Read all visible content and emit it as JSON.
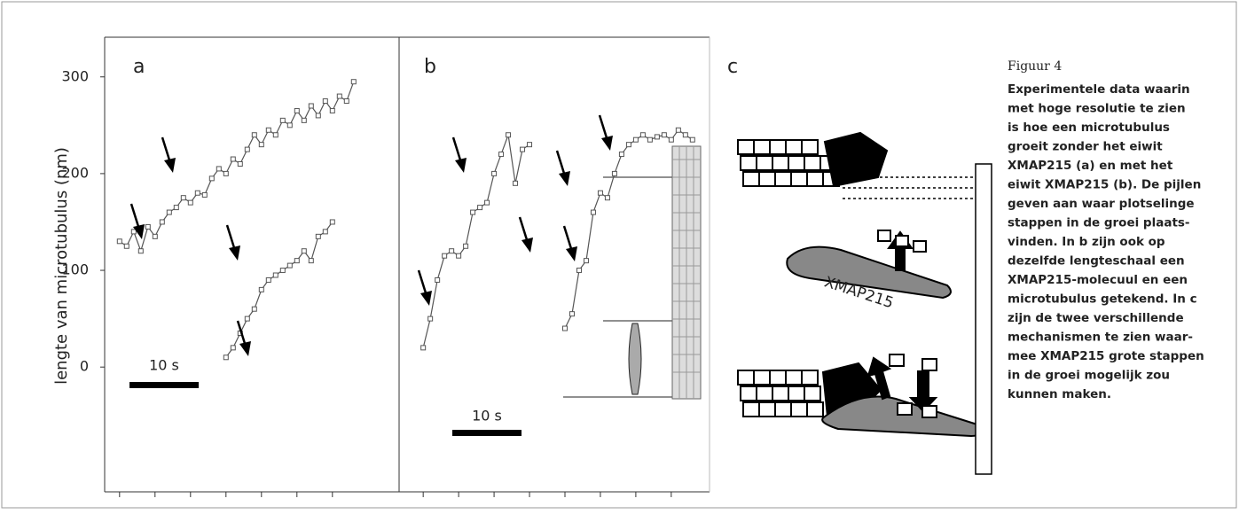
{
  "chart_data": [
    {
      "type": "line",
      "panel_label": "a",
      "y_label": "lengte van microtubulus (nm)",
      "xlim": [
        -2.1,
        39.4
      ],
      "ylim": [
        -129,
        341
      ],
      "yticks": [
        0,
        100,
        200,
        300
      ],
      "xticks": [
        0,
        5,
        10,
        15,
        20,
        25,
        30
      ],
      "scale_bar": "10 s",
      "x": [
        0,
        1,
        2,
        3,
        4,
        5,
        6,
        7,
        8,
        9,
        10,
        11,
        12,
        13,
        14,
        15,
        16,
        17,
        18,
        19,
        20,
        21,
        22,
        23,
        24,
        25,
        26,
        27,
        28,
        29,
        30,
        31,
        32,
        33
      ],
      "series": [
        {
          "color": "#555555",
          "values": [
            130,
            125,
            140,
            120,
            145,
            135,
            150,
            160,
            165,
            175,
            170,
            180,
            178,
            195,
            205,
            200,
            215,
            210,
            225,
            240,
            230,
            245,
            240,
            255,
            250,
            265,
            255,
            270,
            260,
            275,
            265,
            280,
            275,
            295
          ]
        },
        {
          "color": "#555555",
          "values": [
            null,
            null,
            null,
            null,
            null,
            null,
            null,
            null,
            null,
            null,
            null,
            null,
            null,
            null,
            null,
            10,
            20,
            35,
            50,
            60,
            80,
            90,
            95,
            100,
            105,
            110,
            120,
            110,
            135,
            140,
            150,
            null,
            null,
            null
          ]
        }
      ]
    },
    {
      "type": "line",
      "panel_label": "b",
      "xlim": [
        -3.4,
        40.4
      ],
      "ylim": [
        -129,
        341
      ],
      "xticks": [
        0,
        5,
        10,
        15,
        20,
        25,
        30,
        35
      ],
      "scale_bar": "10 s",
      "x": [
        0,
        1,
        2,
        3,
        4,
        5,
        6,
        7,
        8,
        9,
        10,
        11,
        12,
        13,
        14,
        15,
        16,
        17,
        18,
        19,
        20,
        21,
        22,
        23,
        24,
        25,
        26,
        27,
        28,
        29,
        30,
        31,
        32,
        33,
        34,
        35,
        36,
        37,
        38
      ],
      "series": [
        {
          "color": "#555555",
          "values": [
            20,
            50,
            90,
            115,
            120,
            115,
            125,
            160,
            165,
            170,
            200,
            220,
            240,
            190,
            225,
            230,
            null,
            null,
            null,
            null,
            null,
            null,
            null,
            null,
            null,
            null,
            null,
            null,
            null,
            null,
            null,
            null,
            null,
            null,
            null,
            null,
            null,
            null,
            null
          ]
        },
        {
          "color": "#555555",
          "values": [
            null,
            null,
            null,
            null,
            null,
            null,
            null,
            null,
            null,
            null,
            null,
            null,
            null,
            null,
            null,
            null,
            null,
            null,
            null,
            null,
            40,
            55,
            100,
            110,
            160,
            180,
            175,
            200,
            220,
            230,
            235,
            240,
            235,
            238,
            240,
            235,
            245,
            240,
            235
          ]
        }
      ]
    }
  ],
  "diagram": {
    "panel_label": "c",
    "protein_label": "XMAP215"
  },
  "caption": {
    "title": "Figuur 4",
    "lines": [
      "Experimentele data waarin",
      "met hoge resolutie te zien",
      "is hoe een microtubulus",
      "groeit zonder het eiwit",
      "XMAP215 (a) en met het",
      "eiwit XMAP215 (b). De pijlen",
      "geven aan waar plotselinge",
      "stappen in de groei plaats-",
      "vinden. In b zijn ook op",
      "dezelfde lengteschaal een",
      "XMAP215-molecuul en een",
      "microtubulus getekend. In c",
      "zijn de twee verschillende",
      "mechanismen te zien waar-",
      "mee XMAP215 grote stappen",
      "in de groei mogelijk zou",
      "kunnen maken."
    ]
  }
}
